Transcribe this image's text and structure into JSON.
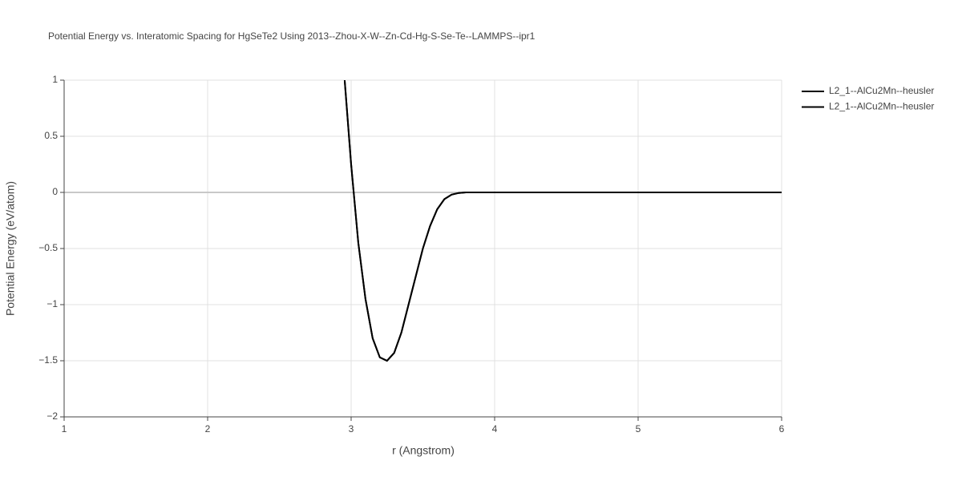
{
  "chart_data": {
    "type": "line",
    "title": "Potential Energy vs. Interatomic Spacing for HgSeTe2 Using 2013--Zhou-X-W--Zn-Cd-Hg-S-Se-Te--LAMMPS--ipr1",
    "x_label": "r (Angstrom)",
    "y_label": "Potential Energy (eV/atom)",
    "x": [
      2.955,
      3.0,
      3.05,
      3.1,
      3.15,
      3.2,
      3.25,
      3.3,
      3.35,
      3.4,
      3.45,
      3.5,
      3.55,
      3.6,
      3.65,
      3.7,
      3.75,
      3.8,
      4.0,
      5.0,
      6.0
    ],
    "series": [
      {
        "name": "L2_1--AlCu2Mn--heusler",
        "color": "#000000",
        "values": [
          1.0,
          0.25,
          -0.45,
          -0.95,
          -1.3,
          -1.47,
          -1.5,
          -1.43,
          -1.25,
          -1.0,
          -0.75,
          -0.5,
          -0.3,
          -0.15,
          -0.06,
          -0.02,
          -0.005,
          0,
          0,
          0,
          0
        ]
      },
      {
        "name": "L2_1--AlCu2Mn--heusler",
        "color": "#000000",
        "values": [
          1.0,
          0.25,
          -0.45,
          -0.95,
          -1.3,
          -1.47,
          -1.5,
          -1.43,
          -1.25,
          -1.0,
          -0.75,
          -0.5,
          -0.3,
          -0.15,
          -0.06,
          -0.02,
          -0.005,
          0,
          0,
          0,
          0
        ]
      }
    ],
    "xlim": [
      1,
      6
    ],
    "ylim": [
      -2,
      1
    ],
    "xticks": [
      1,
      2,
      3,
      4,
      5,
      6
    ],
    "yticks": [
      1,
      0.5,
      0,
      {
        "value": -0.5,
        "label": "−0.5"
      },
      {
        "value": -1,
        "label": "−1"
      },
      {
        "value": -1.5,
        "label": "−1.5"
      },
      {
        "value": -2,
        "label": "−2"
      }
    ],
    "grid": true
  }
}
